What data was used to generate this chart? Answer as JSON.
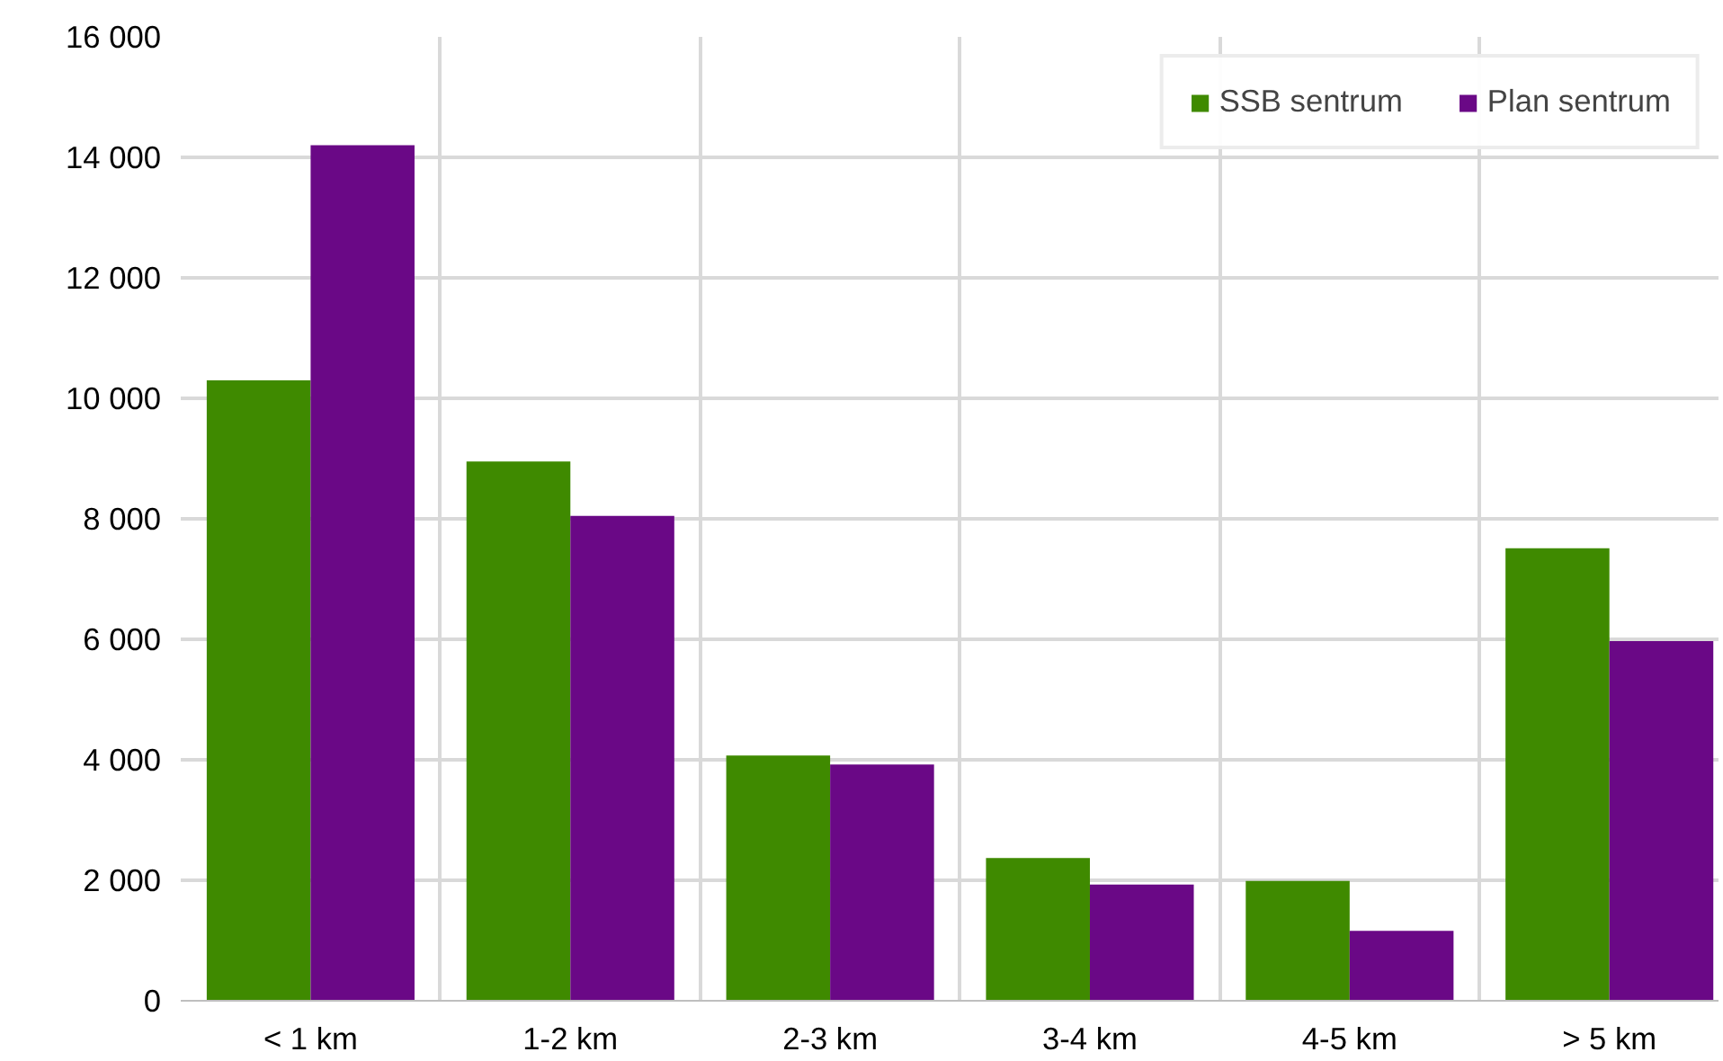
{
  "chart_data": {
    "type": "bar",
    "categories": [
      "< 1 km",
      "1-2 km",
      "2-3 km",
      "3-4 km",
      "4-5 km",
      "> 5 km"
    ],
    "series": [
      {
        "name": "SSB sentrum",
        "color": "#3f8a00",
        "values": [
          10300,
          8950,
          4070,
          2370,
          1990,
          7510
        ]
      },
      {
        "name": "Plan sentrum",
        "color": "#6a0886",
        "values": [
          14200,
          8050,
          3920,
          1930,
          1160,
          5970
        ]
      }
    ],
    "ylim": [
      0,
      16000
    ],
    "yticks": [
      {
        "value": 0,
        "label": "0"
      },
      {
        "value": 2000,
        "label": "2 000"
      },
      {
        "value": 4000,
        "label": "4 000"
      },
      {
        "value": 6000,
        "label": "6 000"
      },
      {
        "value": 8000,
        "label": "8 000"
      },
      {
        "value": 10000,
        "label": "10 000"
      },
      {
        "value": 12000,
        "label": "12 000"
      },
      {
        "value": 14000,
        "label": "14 000"
      },
      {
        "value": 16000,
        "label": "16 000"
      }
    ],
    "grid": true,
    "legend": "top right"
  }
}
